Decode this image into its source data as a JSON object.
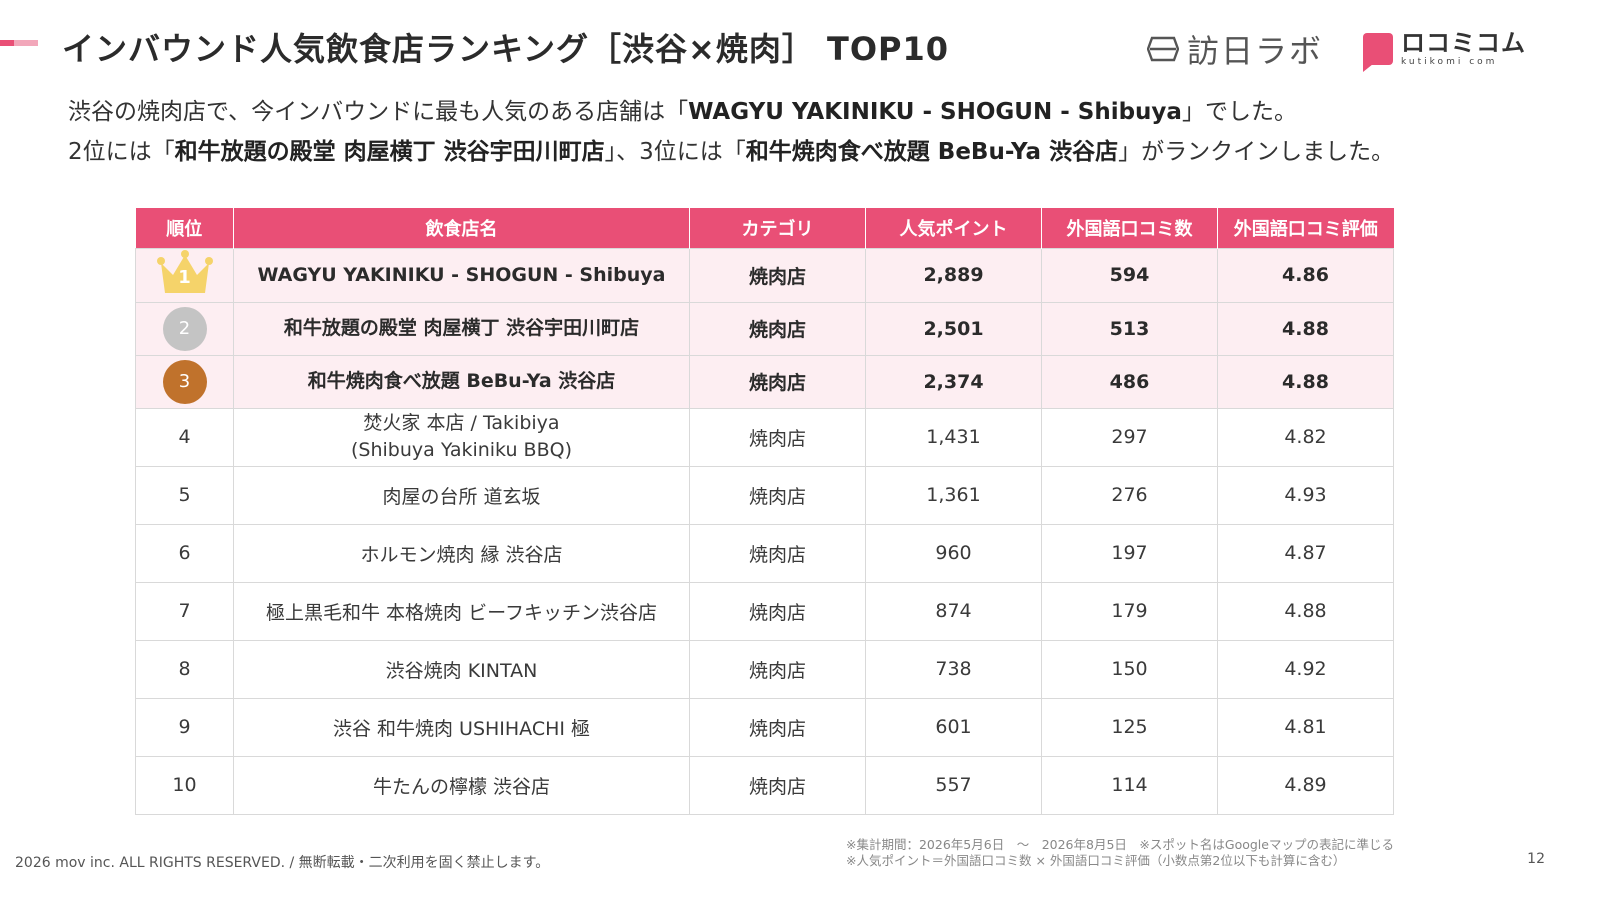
{
  "header": {
    "title": "インバウンド人気飲食店ランキング［渋谷×焼肉］ TOP10",
    "logo_houni": "訪日ラボ",
    "logo_kuti_main": "ロコミコム",
    "logo_kuti_sub": "kutikomi com"
  },
  "intro": {
    "line1_a": "渋谷の焼肉店で、今インバウンドに最も人気のある店舗は「",
    "line1_b": "WAGYU YAKINIKU  - SHOGUN -  Shibuya",
    "line1_c": "」でした。",
    "line2_a": "2位には「",
    "line2_b": "和牛放題の殿堂 肉屋横丁 渋谷宇田川町店",
    "line2_c": "」、3位には「",
    "line2_d": "和牛焼肉食べ放題 BeBu-Ya 渋谷店",
    "line2_e": "」がランクインしました。"
  },
  "table": {
    "headers": [
      "順位",
      "飲食店名",
      "カテゴリ",
      "人気ポイント",
      "外国語口コミ数",
      "外国語口コミ評価"
    ],
    "rows": [
      {
        "rank": "1",
        "name": "WAGYU YAKINIKU  - SHOGUN -  Shibuya",
        "name2": "",
        "category": "焼肉店",
        "points": "2,889",
        "reviews": "594",
        "rating": "4.86"
      },
      {
        "rank": "2",
        "name": "和牛放題の殿堂 肉屋横丁 渋谷宇田川町店",
        "name2": "",
        "category": "焼肉店",
        "points": "2,501",
        "reviews": "513",
        "rating": "4.88"
      },
      {
        "rank": "3",
        "name": "和牛焼肉食べ放題 BeBu-Ya 渋谷店",
        "name2": "",
        "category": "焼肉店",
        "points": "2,374",
        "reviews": "486",
        "rating": "4.88"
      },
      {
        "rank": "4",
        "name": "焚火家 本店 / Takibiya",
        "name2": "(Shibuya Yakiniku BBQ)",
        "category": "焼肉店",
        "points": "1,431",
        "reviews": "297",
        "rating": "4.82"
      },
      {
        "rank": "5",
        "name": "肉屋の台所 道玄坂",
        "name2": "",
        "category": "焼肉店",
        "points": "1,361",
        "reviews": "276",
        "rating": "4.93"
      },
      {
        "rank": "6",
        "name": "ホルモン焼肉 縁 渋谷店",
        "name2": "",
        "category": "焼肉店",
        "points": "960",
        "reviews": "197",
        "rating": "4.87"
      },
      {
        "rank": "7",
        "name": "極上黒毛和牛 本格焼肉 ビーフキッチン渋谷店",
        "name2": "",
        "category": "焼肉店",
        "points": "874",
        "reviews": "179",
        "rating": "4.88"
      },
      {
        "rank": "8",
        "name": "渋谷焼肉 KINTAN",
        "name2": "",
        "category": "焼肉店",
        "points": "738",
        "reviews": "150",
        "rating": "4.92"
      },
      {
        "rank": "9",
        "name": "渋谷 和牛焼肉 USHIHACHI 極",
        "name2": "",
        "category": "焼肉店",
        "points": "601",
        "reviews": "125",
        "rating": "4.81"
      },
      {
        "rank": "10",
        "name": "牛たんの檸檬 渋谷店",
        "name2": "",
        "category": "焼肉店",
        "points": "557",
        "reviews": "114",
        "rating": "4.89"
      }
    ]
  },
  "footer": {
    "copyright": "2026 mov inc. ALL RIGHTS RESERVED. / 無断転載・二次利用を固く禁止します。",
    "note1": "※集計期間：2026年5月6日　〜　2026年8月5日　※スポット名はGoogleマップの表記に準じる",
    "note2": "※人気ポイント＝外国語口コミ数 × 外国語口コミ評価（小数点第2位以下も計算に含む）",
    "page_number": "12"
  },
  "colors": {
    "accent": "#e94f76",
    "highlight_row": "#fdeef2",
    "gold": "#f5d36a",
    "silver": "#c4c4c4",
    "bronze": "#c0722c"
  }
}
